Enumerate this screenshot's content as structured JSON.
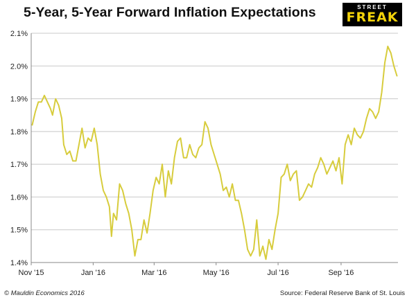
{
  "header": {
    "title": "5-Year, 5-Year Forward Inflation Expectations",
    "logo_top": "STREET",
    "logo_main": "FREAK"
  },
  "footer": {
    "copyright": "© Mauldin Economics 2016",
    "source": "Source: Federal Reserve Bank of St. Louis"
  },
  "colors": {
    "line": "#d7cc3c",
    "grid": "#c8c8c8",
    "axis": "#888888",
    "logo_bg": "#000000",
    "logo_text": "#f2d20a"
  },
  "chart_data": {
    "type": "line",
    "title": "5-Year, 5-Year Forward Inflation Expectations",
    "xlabel": "",
    "ylabel": "",
    "ylim": [
      1.4,
      2.1
    ],
    "yticks": [
      1.4,
      1.5,
      1.6,
      1.7,
      1.8,
      1.9,
      2.0,
      2.1
    ],
    "ytick_labels": [
      "1.4%",
      "1.5%",
      "1.6%",
      "1.7%",
      "1.8%",
      "1.9%",
      "2.0%",
      "2.1%"
    ],
    "xlim": [
      "2015-11-01",
      "2016-10-27"
    ],
    "xticks": [
      {
        "date": "2015-11-01",
        "label": "Nov '15"
      },
      {
        "date": "2016-01-01",
        "label": "Jan '16"
      },
      {
        "date": "2016-03-01",
        "label": "Mar '16"
      },
      {
        "date": "2016-05-01",
        "label": "May '16"
      },
      {
        "date": "2016-07-01",
        "label": "Jul '16"
      },
      {
        "date": "2016-09-01",
        "label": "Sep '16"
      }
    ],
    "grid": true,
    "legend": "none",
    "series": [
      {
        "points": [
          [
            "2015-11-02",
            1.82
          ],
          [
            "2015-11-05",
            1.86
          ],
          [
            "2015-11-08",
            1.89
          ],
          [
            "2015-11-11",
            1.89
          ],
          [
            "2015-11-14",
            1.91
          ],
          [
            "2015-11-17",
            1.89
          ],
          [
            "2015-11-20",
            1.87
          ],
          [
            "2015-11-22",
            1.85
          ],
          [
            "2015-11-25",
            1.9
          ],
          [
            "2015-11-28",
            1.88
          ],
          [
            "2015-12-01",
            1.84
          ],
          [
            "2015-12-03",
            1.76
          ],
          [
            "2015-12-06",
            1.73
          ],
          [
            "2015-12-09",
            1.74
          ],
          [
            "2015-12-12",
            1.71
          ],
          [
            "2015-12-15",
            1.71
          ],
          [
            "2015-12-18",
            1.76
          ],
          [
            "2015-12-21",
            1.81
          ],
          [
            "2015-12-24",
            1.75
          ],
          [
            "2015-12-27",
            1.78
          ],
          [
            "2015-12-30",
            1.77
          ],
          [
            "2016-01-02",
            1.81
          ],
          [
            "2016-01-05",
            1.76
          ],
          [
            "2016-01-08",
            1.67
          ],
          [
            "2016-01-11",
            1.62
          ],
          [
            "2016-01-14",
            1.6
          ],
          [
            "2016-01-17",
            1.57
          ],
          [
            "2016-01-19",
            1.48
          ],
          [
            "2016-01-21",
            1.55
          ],
          [
            "2016-01-24",
            1.53
          ],
          [
            "2016-01-27",
            1.64
          ],
          [
            "2016-01-30",
            1.62
          ],
          [
            "2016-02-02",
            1.58
          ],
          [
            "2016-02-05",
            1.55
          ],
          [
            "2016-02-08",
            1.5
          ],
          [
            "2016-02-11",
            1.42
          ],
          [
            "2016-02-14",
            1.47
          ],
          [
            "2016-02-17",
            1.47
          ],
          [
            "2016-02-20",
            1.53
          ],
          [
            "2016-02-23",
            1.49
          ],
          [
            "2016-02-26",
            1.55
          ],
          [
            "2016-02-29",
            1.62
          ],
          [
            "2016-03-03",
            1.66
          ],
          [
            "2016-03-06",
            1.64
          ],
          [
            "2016-03-09",
            1.7
          ],
          [
            "2016-03-12",
            1.6
          ],
          [
            "2016-03-15",
            1.68
          ],
          [
            "2016-03-18",
            1.64
          ],
          [
            "2016-03-21",
            1.72
          ],
          [
            "2016-03-24",
            1.77
          ],
          [
            "2016-03-27",
            1.78
          ],
          [
            "2016-03-30",
            1.72
          ],
          [
            "2016-04-02",
            1.72
          ],
          [
            "2016-04-05",
            1.76
          ],
          [
            "2016-04-08",
            1.73
          ],
          [
            "2016-04-11",
            1.72
          ],
          [
            "2016-04-14",
            1.75
          ],
          [
            "2016-04-17",
            1.76
          ],
          [
            "2016-04-20",
            1.83
          ],
          [
            "2016-04-23",
            1.81
          ],
          [
            "2016-04-26",
            1.76
          ],
          [
            "2016-04-29",
            1.73
          ],
          [
            "2016-05-02",
            1.7
          ],
          [
            "2016-05-05",
            1.67
          ],
          [
            "2016-05-08",
            1.62
          ],
          [
            "2016-05-11",
            1.63
          ],
          [
            "2016-05-14",
            1.6
          ],
          [
            "2016-05-17",
            1.64
          ],
          [
            "2016-05-20",
            1.59
          ],
          [
            "2016-05-23",
            1.59
          ],
          [
            "2016-05-26",
            1.55
          ],
          [
            "2016-05-29",
            1.5
          ],
          [
            "2016-06-01",
            1.44
          ],
          [
            "2016-06-04",
            1.42
          ],
          [
            "2016-06-07",
            1.44
          ],
          [
            "2016-06-10",
            1.53
          ],
          [
            "2016-06-13",
            1.42
          ],
          [
            "2016-06-16",
            1.45
          ],
          [
            "2016-06-19",
            1.41
          ],
          [
            "2016-06-22",
            1.47
          ],
          [
            "2016-06-25",
            1.44
          ],
          [
            "2016-06-28",
            1.5
          ],
          [
            "2016-07-01",
            1.55
          ],
          [
            "2016-07-04",
            1.66
          ],
          [
            "2016-07-07",
            1.67
          ],
          [
            "2016-07-10",
            1.7
          ],
          [
            "2016-07-13",
            1.65
          ],
          [
            "2016-07-16",
            1.67
          ],
          [
            "2016-07-19",
            1.68
          ],
          [
            "2016-07-22",
            1.59
          ],
          [
            "2016-07-25",
            1.6
          ],
          [
            "2016-07-28",
            1.62
          ],
          [
            "2016-07-31",
            1.64
          ],
          [
            "2016-08-03",
            1.63
          ],
          [
            "2016-08-06",
            1.67
          ],
          [
            "2016-08-09",
            1.69
          ],
          [
            "2016-08-12",
            1.72
          ],
          [
            "2016-08-15",
            1.7
          ],
          [
            "2016-08-18",
            1.67
          ],
          [
            "2016-08-21",
            1.69
          ],
          [
            "2016-08-24",
            1.71
          ],
          [
            "2016-08-27",
            1.68
          ],
          [
            "2016-08-30",
            1.72
          ],
          [
            "2016-09-02",
            1.64
          ],
          [
            "2016-09-05",
            1.76
          ],
          [
            "2016-09-08",
            1.79
          ],
          [
            "2016-09-11",
            1.76
          ],
          [
            "2016-09-14",
            1.81
          ],
          [
            "2016-09-17",
            1.79
          ],
          [
            "2016-09-20",
            1.78
          ],
          [
            "2016-09-23",
            1.8
          ],
          [
            "2016-09-26",
            1.84
          ],
          [
            "2016-09-29",
            1.87
          ],
          [
            "2016-10-02",
            1.86
          ],
          [
            "2016-10-05",
            1.84
          ],
          [
            "2016-10-08",
            1.86
          ],
          [
            "2016-10-11",
            1.92
          ],
          [
            "2016-10-14",
            2.01
          ],
          [
            "2016-10-17",
            2.06
          ],
          [
            "2016-10-20",
            2.04
          ],
          [
            "2016-10-23",
            2.0
          ],
          [
            "2016-10-26",
            1.97
          ]
        ]
      }
    ]
  }
}
